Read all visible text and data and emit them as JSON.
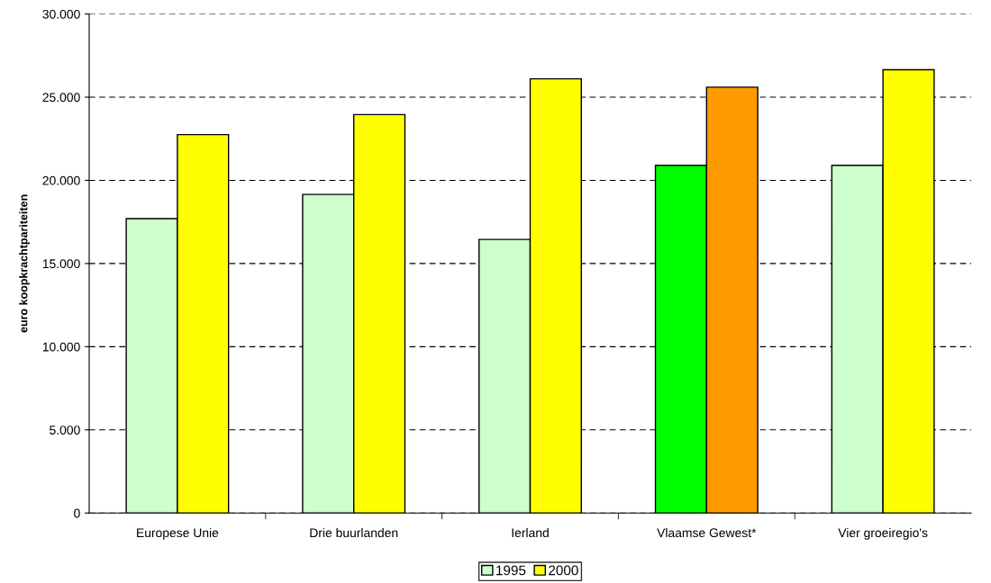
{
  "chart_data": {
    "type": "bar",
    "ylabel": "euro koopkrachtpariteiten",
    "categories": [
      "Europese Unie",
      "Drie buurlanden",
      "Ierland",
      "Vlaamse Gewest*",
      "Vier groeiregio's"
    ],
    "series": [
      {
        "name": "1995",
        "color": "#ccffcc",
        "colors": [
          "#ccffcc",
          "#ccffcc",
          "#ccffcc",
          "#00ff00",
          "#ccffcc"
        ],
        "values": [
          17700,
          19150,
          16450,
          20900,
          20900
        ]
      },
      {
        "name": "2000",
        "color": "#ffff00",
        "colors": [
          "#ffff00",
          "#ffff00",
          "#ffff00",
          "#ff9900",
          "#ffff00"
        ],
        "values": [
          22750,
          23950,
          26100,
          25600,
          26650
        ]
      }
    ],
    "ylim": [
      0,
      30000
    ],
    "yticks": [
      0,
      {
        "value": 5000,
        "label": "5.000"
      },
      {
        "value": 10000,
        "label": "10.000"
      },
      {
        "value": 15000,
        "label": "15.000"
      },
      {
        "value": 20000,
        "label": "20.000"
      },
      {
        "value": 25000,
        "label": "25.000"
      },
      {
        "value": 30000,
        "label": "30.000"
      }
    ],
    "grid": "y",
    "legend": "bottom"
  }
}
